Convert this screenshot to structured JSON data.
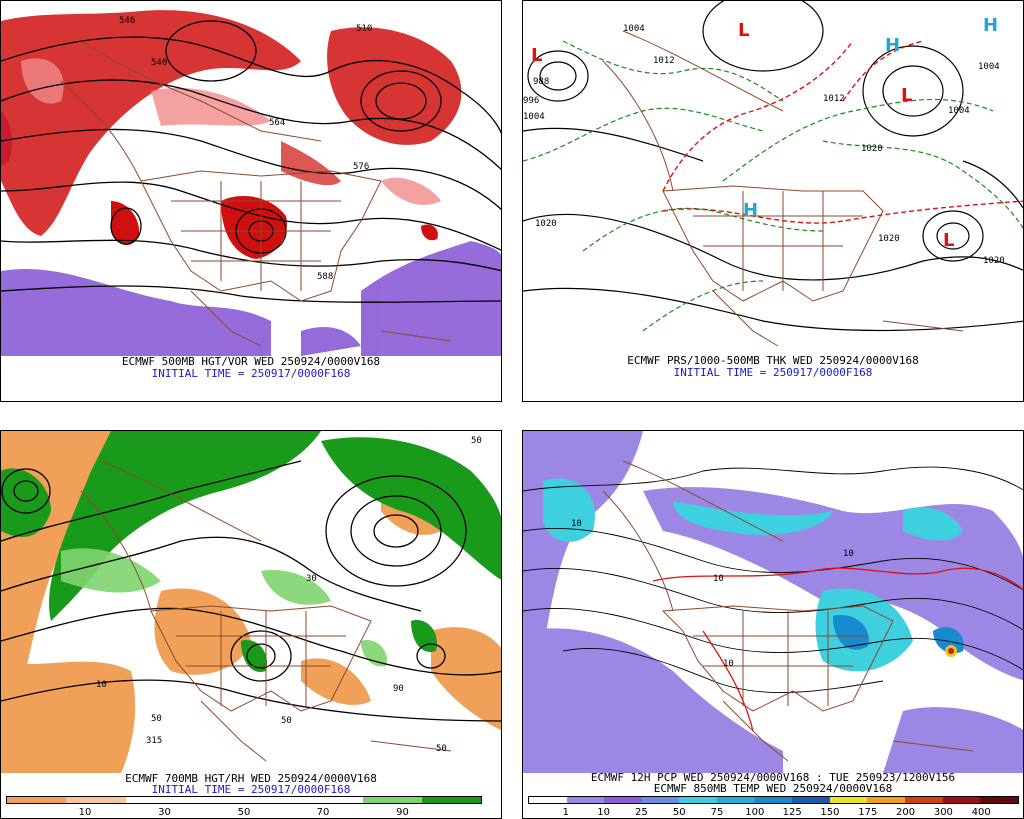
{
  "colors": {
    "vort": "#d01010",
    "vort_light": "#f08a8a",
    "vort_neg": "#8a5cd6",
    "dry": "#f0a058",
    "moist": "#1a9a1a",
    "moist_light": "#7fd46f",
    "pcp_light": "#9c88e4",
    "pcp_mid": "#3fd0e0",
    "pcp_heavy": "#1a8ad0",
    "borders": "#8b4a2b",
    "contour": "#000000",
    "thickness_warm": "#e01010",
    "thickness_cold": "#1a8a1a"
  },
  "panels": {
    "tl": {
      "caption1": "ECMWF 500MB HGT/VOR WED 250924/0000V168",
      "caption2": "INITIAL TIME = 250917/0000F168",
      "labels": [
        "546",
        "540",
        "564",
        "576",
        "588",
        "510"
      ]
    },
    "tr": {
      "caption1": "ECMWF PRS/1000-500MB THK WED 250924/0000V168",
      "caption2": "INITIAL TIME = 250917/0000F168",
      "labels": [
        "1004",
        "1012",
        "1020",
        "1020",
        "1020",
        "1004",
        "1012",
        "1020",
        "1004",
        "1004",
        "996",
        "988"
      ]
    },
    "bl": {
      "caption1": "ECMWF 700MB HGT/RH WED 250924/0000V168",
      "caption2": "INITIAL TIME = 250917/0000F168",
      "legend_ticks": [
        "10",
        "30",
        "50",
        "70",
        "90"
      ],
      "labels": [
        "50",
        "10",
        "30",
        "50",
        "90",
        "50",
        "315",
        "50"
      ]
    },
    "br": {
      "caption1": "ECMWF 12H PCP WED 250924/0000V168 : TUE 250923/1200V156",
      "caption2": "ECMWF 850MB TEMP WED 250924/0000V168",
      "legend_ticks": [
        "1",
        "10",
        "25",
        "50",
        "75",
        "100",
        "125",
        "150",
        "175",
        "200",
        "300",
        "400"
      ],
      "labels": [
        "10",
        "10",
        "10",
        "10"
      ]
    }
  }
}
